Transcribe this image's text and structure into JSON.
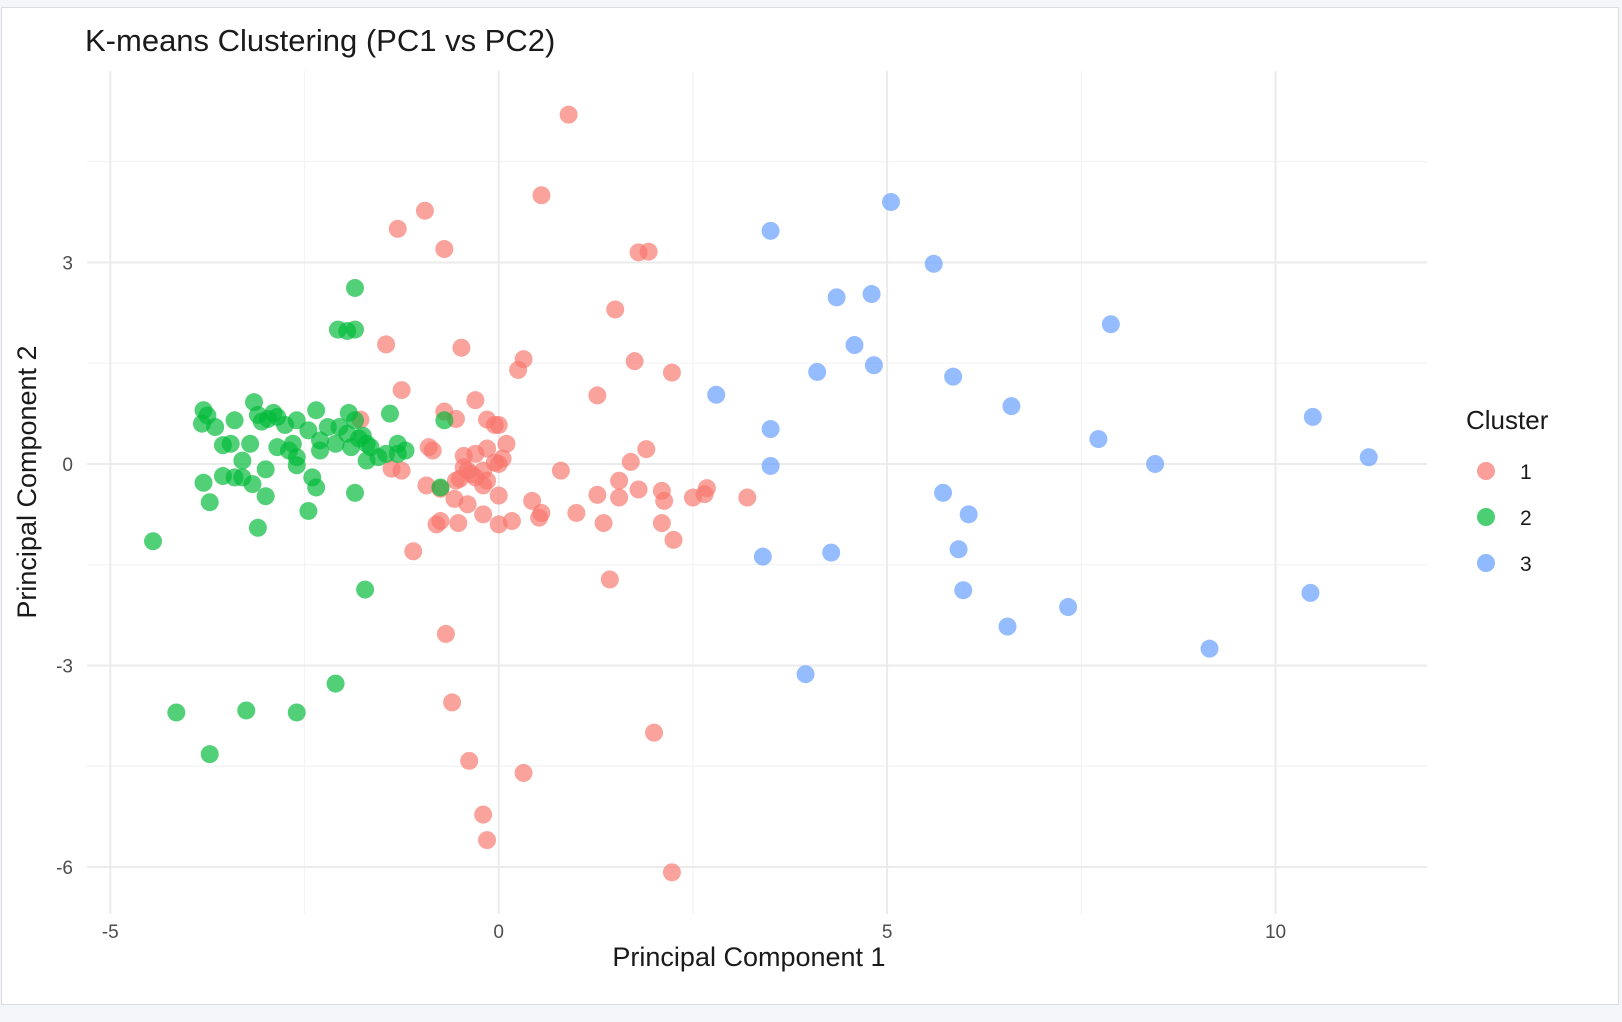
{
  "chart_data": {
    "type": "scatter",
    "title": "K-means Clustering (PC1 vs PC2)",
    "xlabel": "Principal Component 1",
    "ylabel": "Principal Component 2",
    "xlim": [
      -5.3,
      11.95
    ],
    "ylim": [
      -6.7,
      5.85
    ],
    "x_ticks": [
      -5,
      0,
      5,
      10
    ],
    "y_ticks": [
      -6,
      -3,
      0,
      3
    ],
    "x_tick_labels": [
      "-5",
      "0",
      "5",
      "10"
    ],
    "y_tick_labels": [
      "-6",
      "-3",
      "0",
      "3"
    ],
    "grid": true,
    "legend": {
      "title": "Cluster",
      "position": "right"
    },
    "series": [
      {
        "name": "1",
        "color": "#F8766D",
        "points": [
          [
            0.9,
            5.2
          ],
          [
            0.55,
            4.0
          ],
          [
            -0.95,
            3.77
          ],
          [
            -1.3,
            3.5
          ],
          [
            -0.7,
            3.2
          ],
          [
            1.8,
            3.15
          ],
          [
            1.93,
            3.16
          ],
          [
            1.5,
            2.3
          ],
          [
            -1.45,
            1.78
          ],
          [
            -0.48,
            1.73
          ],
          [
            0.32,
            1.56
          ],
          [
            0.25,
            1.4
          ],
          [
            1.75,
            1.53
          ],
          [
            2.23,
            1.36
          ],
          [
            -1.25,
            1.1
          ],
          [
            1.27,
            1.02
          ],
          [
            -0.3,
            0.95
          ],
          [
            -0.7,
            0.78
          ],
          [
            -0.55,
            0.67
          ],
          [
            -1.78,
            0.66
          ],
          [
            -0.15,
            0.66
          ],
          [
            0.0,
            0.58
          ],
          [
            -0.05,
            0.58
          ],
          [
            0.1,
            0.3
          ],
          [
            -0.9,
            0.25
          ],
          [
            -0.85,
            0.2
          ],
          [
            -0.15,
            0.23
          ],
          [
            -0.45,
            0.12
          ],
          [
            -0.3,
            0.15
          ],
          [
            0.05,
            0.08
          ],
          [
            1.9,
            0.22
          ],
          [
            1.7,
            0.03
          ],
          [
            -1.38,
            -0.07
          ],
          [
            -1.25,
            -0.1
          ],
          [
            -0.45,
            -0.05
          ],
          [
            -0.4,
            -0.1
          ],
          [
            -0.35,
            -0.15
          ],
          [
            -0.2,
            -0.1
          ],
          [
            0.0,
            0.0
          ],
          [
            -0.05,
            0.02
          ],
          [
            -0.5,
            -0.22
          ],
          [
            -0.55,
            -0.25
          ],
          [
            -0.3,
            -0.2
          ],
          [
            -0.15,
            -0.25
          ],
          [
            -0.2,
            -0.32
          ],
          [
            0.8,
            -0.1
          ],
          [
            1.55,
            -0.25
          ],
          [
            -0.93,
            -0.32
          ],
          [
            -0.75,
            -0.37
          ],
          [
            -0.57,
            -0.52
          ],
          [
            -0.4,
            -0.6
          ],
          [
            0.0,
            -0.47
          ],
          [
            0.43,
            -0.55
          ],
          [
            0.55,
            -0.73
          ],
          [
            0.52,
            -0.8
          ],
          [
            1.0,
            -0.73
          ],
          [
            1.27,
            -0.46
          ],
          [
            1.55,
            -0.5
          ],
          [
            1.8,
            -0.38
          ],
          [
            2.1,
            -0.4
          ],
          [
            2.13,
            -0.55
          ],
          [
            2.65,
            -0.45
          ],
          [
            2.68,
            -0.36
          ],
          [
            2.5,
            -0.5
          ],
          [
            3.2,
            -0.5
          ],
          [
            -0.2,
            -0.75
          ],
          [
            -0.8,
            -0.9
          ],
          [
            -0.75,
            -0.85
          ],
          [
            -0.52,
            -0.88
          ],
          [
            0.0,
            -0.9
          ],
          [
            0.17,
            -0.85
          ],
          [
            1.35,
            -0.88
          ],
          [
            2.1,
            -0.88
          ],
          [
            2.25,
            -1.13
          ],
          [
            -1.1,
            -1.3
          ],
          [
            1.43,
            -1.72
          ],
          [
            -0.68,
            -2.53
          ],
          [
            -0.6,
            -3.55
          ],
          [
            2.0,
            -4.0
          ],
          [
            -0.38,
            -4.42
          ],
          [
            0.32,
            -4.6
          ],
          [
            -0.2,
            -5.22
          ],
          [
            -0.15,
            -5.6
          ],
          [
            2.23,
            -6.08
          ]
        ]
      },
      {
        "name": "2",
        "color": "#00BA38",
        "points": [
          [
            -1.85,
            2.62
          ],
          [
            -2.07,
            2.0
          ],
          [
            -1.95,
            1.98
          ],
          [
            -1.85,
            2.0
          ],
          [
            -3.15,
            0.92
          ],
          [
            -3.8,
            0.8
          ],
          [
            -3.75,
            0.72
          ],
          [
            -3.82,
            0.6
          ],
          [
            -3.65,
            0.55
          ],
          [
            -3.4,
            0.65
          ],
          [
            -3.1,
            0.73
          ],
          [
            -2.9,
            0.76
          ],
          [
            -2.85,
            0.7
          ],
          [
            -2.97,
            0.67
          ],
          [
            -3.05,
            0.63
          ],
          [
            -2.75,
            0.58
          ],
          [
            -2.6,
            0.65
          ],
          [
            -2.35,
            0.8
          ],
          [
            -1.93,
            0.76
          ],
          [
            -1.85,
            0.65
          ],
          [
            -1.4,
            0.75
          ],
          [
            -0.7,
            0.65
          ],
          [
            -2.45,
            0.5
          ],
          [
            -2.2,
            0.55
          ],
          [
            -2.05,
            0.55
          ],
          [
            -1.95,
            0.45
          ],
          [
            -1.8,
            0.38
          ],
          [
            -1.75,
            0.42
          ],
          [
            -1.7,
            0.3
          ],
          [
            -2.3,
            0.35
          ],
          [
            -2.65,
            0.3
          ],
          [
            -2.7,
            0.2
          ],
          [
            -2.85,
            0.25
          ],
          [
            -3.2,
            0.3
          ],
          [
            -3.45,
            0.3
          ],
          [
            -3.55,
            0.28
          ],
          [
            -2.6,
            0.1
          ],
          [
            -2.3,
            0.2
          ],
          [
            -2.1,
            0.3
          ],
          [
            -1.9,
            0.25
          ],
          [
            -1.65,
            0.25
          ],
          [
            -1.45,
            0.15
          ],
          [
            -1.3,
            0.3
          ],
          [
            -1.2,
            0.2
          ],
          [
            -1.3,
            0.15
          ],
          [
            -1.55,
            0.1
          ],
          [
            -1.7,
            0.05
          ],
          [
            -3.3,
            0.05
          ],
          [
            -2.6,
            -0.02
          ],
          [
            -3.0,
            -0.08
          ],
          [
            -3.55,
            -0.18
          ],
          [
            -3.4,
            -0.2
          ],
          [
            -3.3,
            -0.2
          ],
          [
            -2.4,
            -0.2
          ],
          [
            -3.17,
            -0.3
          ],
          [
            -3.8,
            -0.28
          ],
          [
            -2.35,
            -0.35
          ],
          [
            -1.85,
            -0.43
          ],
          [
            -0.75,
            -0.35
          ],
          [
            -3.0,
            -0.48
          ],
          [
            -3.72,
            -0.57
          ],
          [
            -2.45,
            -0.7
          ],
          [
            -3.1,
            -0.95
          ],
          [
            -4.45,
            -1.15
          ],
          [
            -1.72,
            -1.87
          ],
          [
            -2.1,
            -3.27
          ],
          [
            -4.15,
            -3.7
          ],
          [
            -3.25,
            -3.67
          ],
          [
            -2.6,
            -3.7
          ],
          [
            -3.72,
            -4.32
          ]
        ]
      },
      {
        "name": "3",
        "color": "#619CFF",
        "points": [
          [
            5.05,
            3.9
          ],
          [
            3.5,
            3.47
          ],
          [
            5.6,
            2.98
          ],
          [
            4.35,
            2.48
          ],
          [
            4.8,
            2.53
          ],
          [
            7.88,
            2.08
          ],
          [
            4.58,
            1.77
          ],
          [
            4.83,
            1.47
          ],
          [
            4.1,
            1.37
          ],
          [
            5.85,
            1.3
          ],
          [
            2.8,
            1.03
          ],
          [
            6.6,
            0.86
          ],
          [
            3.5,
            0.52
          ],
          [
            10.48,
            0.7
          ],
          [
            7.72,
            0.37
          ],
          [
            11.2,
            0.1
          ],
          [
            8.45,
            0.0
          ],
          [
            3.5,
            -0.03
          ],
          [
            5.72,
            -0.43
          ],
          [
            6.05,
            -0.75
          ],
          [
            5.92,
            -1.27
          ],
          [
            3.4,
            -1.38
          ],
          [
            4.28,
            -1.32
          ],
          [
            5.98,
            -1.88
          ],
          [
            10.45,
            -1.92
          ],
          [
            7.33,
            -2.13
          ],
          [
            6.55,
            -2.42
          ],
          [
            9.15,
            -2.75
          ],
          [
            3.95,
            -3.13
          ]
        ]
      }
    ]
  }
}
